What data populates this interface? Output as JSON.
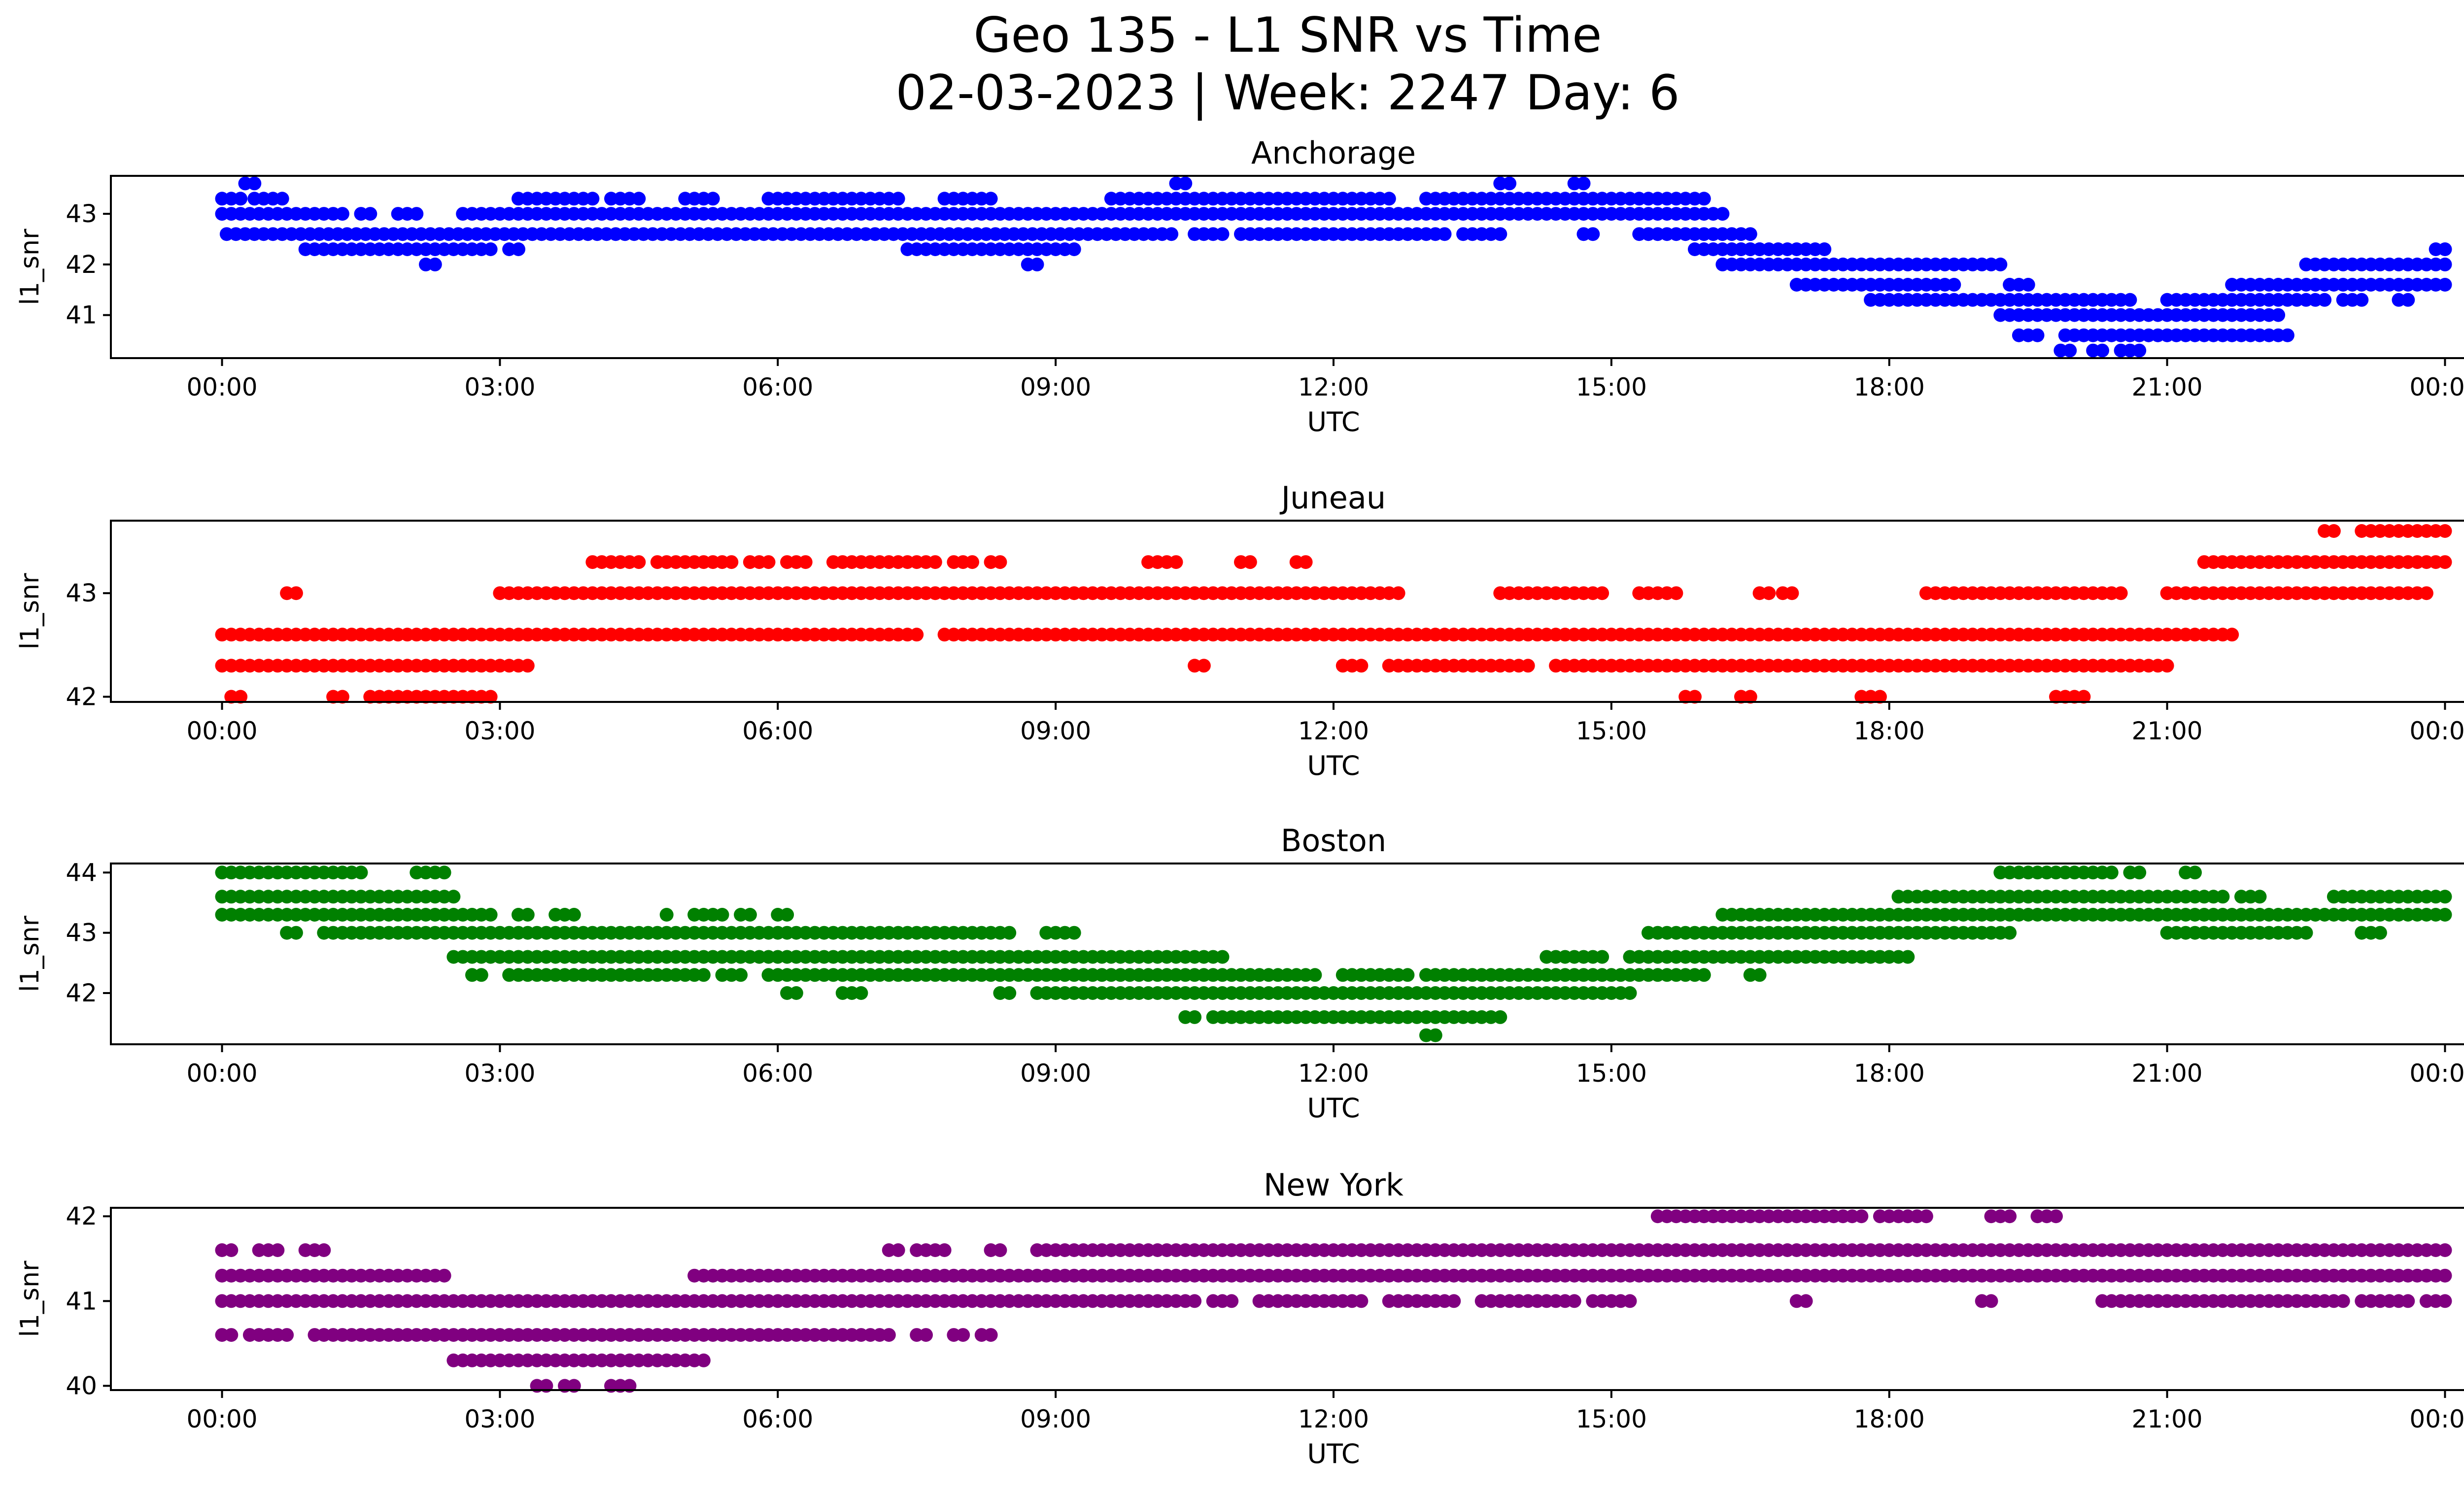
{
  "figure": {
    "title_line1": "Geo 135 - L1 SNR vs Time",
    "title_line2": "02-03-2023 | Week: 2247 Day: 6"
  },
  "chart_data": [
    {
      "type": "scatter",
      "title": "Anchorage",
      "xlabel": "UTC",
      "ylabel": "l1_snr",
      "color": "#0000ff",
      "x_ticks": [
        "00:00",
        "03:00",
        "06:00",
        "09:00",
        "12:00",
        "15:00",
        "18:00",
        "21:00",
        "00:00"
      ],
      "xlim_hours": [
        -1.2,
        25.2
      ],
      "y_ticks": [
        41,
        42,
        43
      ],
      "ylim": [
        40.15,
        43.75
      ],
      "bands": [
        {
          "y": 43.6,
          "segs": [
            [
              0.25,
              0.35
            ],
            [
              10.3,
              10.4
            ],
            [
              13.8,
              13.95
            ],
            [
              14.6,
              14.7
            ]
          ]
        },
        {
          "y": 43.3,
          "segs": [
            [
              0,
              0.25
            ],
            [
              0.35,
              0.45
            ],
            [
              0.55,
              0.7
            ],
            [
              3.2,
              4.0
            ],
            [
              4.2,
              4.5
            ],
            [
              5.0,
              5.3
            ],
            [
              5.9,
              6.3
            ],
            [
              6.4,
              7.3
            ],
            [
              7.8,
              8.3
            ],
            [
              9.6,
              12.6
            ],
            [
              13.0,
              16.0
            ]
          ]
        },
        {
          "y": 43.0,
          "segs": [
            [
              0,
              1.3
            ],
            [
              1.5,
              1.6
            ],
            [
              1.9,
              2.15
            ],
            [
              2.6,
              16.2
            ]
          ]
        },
        {
          "y": 42.6,
          "segs": [
            [
              0.05,
              10.3
            ],
            [
              10.5,
              10.8
            ],
            [
              11.0,
              13.2
            ],
            [
              13.4,
              13.8
            ],
            [
              14.7,
              14.85
            ],
            [
              15.3,
              16.5
            ]
          ]
        },
        {
          "y": 42.3,
          "segs": [
            [
              0.9,
              2.9
            ],
            [
              3.1,
              3.2
            ],
            [
              7.4,
              9.2
            ],
            [
              15.9,
              16.6
            ]
          ]
        },
        {
          "y": 42.0,
          "segs": [
            [
              2.2,
              2.3
            ],
            [
              8.7,
              8.8
            ],
            [
              16.2,
              19.2
            ]
          ]
        },
        {
          "y": 42.3,
          "segs": [
            [
              16.4,
              17.3
            ]
          ]
        },
        {
          "y": 41.6,
          "segs": [
            [
              17.0,
              18.7
            ],
            [
              19.3,
              19.5
            ],
            [
              21.7,
              23.5
            ]
          ]
        },
        {
          "y": 41.3,
          "segs": [
            [
              17.8,
              20.6
            ],
            [
              21.0,
              22.7
            ],
            [
              22.9,
              23.1
            ],
            [
              23.5,
              23.6
            ]
          ]
        },
        {
          "y": 41.6,
          "segs": [
            [
              23.6,
              24.0
            ]
          ]
        },
        {
          "y": 42.0,
          "segs": [
            [
              22.5,
              24.0
            ]
          ]
        },
        {
          "y": 42.3,
          "segs": [
            [
              23.9,
              24.0
            ]
          ]
        },
        {
          "y": 41.0,
          "segs": [
            [
              19.2,
              22.2
            ]
          ]
        },
        {
          "y": 40.6,
          "segs": [
            [
              19.4,
              19.6
            ],
            [
              19.9,
              22.3
            ]
          ]
        },
        {
          "y": 40.3,
          "segs": [
            [
              19.85,
              20.0
            ],
            [
              20.2,
              20.3
            ],
            [
              20.5,
              20.7
            ]
          ]
        }
      ]
    },
    {
      "type": "scatter",
      "title": "Juneau",
      "xlabel": "UTC",
      "ylabel": "l1_snr",
      "color": "#ff0000",
      "x_ticks": [
        "00:00",
        "03:00",
        "06:00",
        "09:00",
        "12:00",
        "15:00",
        "18:00",
        "21:00",
        "00:00"
      ],
      "xlim_hours": [
        -1.2,
        25.2
      ],
      "y_ticks": [
        42,
        43
      ],
      "ylim": [
        41.95,
        43.7
      ],
      "bands": [
        {
          "y": 43.6,
          "segs": [
            [
              22.7,
              22.8
            ],
            [
              23.1,
              24.0
            ]
          ]
        },
        {
          "y": 43.3,
          "segs": [
            [
              4.0,
              4.5
            ],
            [
              4.7,
              5.5
            ],
            [
              5.7,
              5.9
            ],
            [
              6.1,
              6.3
            ],
            [
              6.6,
              7.7
            ],
            [
              7.9,
              8.1
            ],
            [
              8.3,
              8.45
            ],
            [
              10.0,
              10.3
            ],
            [
              11.0,
              11.1
            ],
            [
              11.6,
              11.7
            ],
            [
              21.4,
              24.0
            ]
          ]
        },
        {
          "y": 43.0,
          "segs": [
            [
              0.7,
              0.8
            ],
            [
              3.0,
              12.75
            ],
            [
              13.8,
              14.9
            ],
            [
              15.3,
              15.7
            ],
            [
              16.6,
              16.7
            ],
            [
              16.85,
              16.95
            ],
            [
              18.4,
              20.5
            ],
            [
              21.0,
              23.8
            ]
          ]
        },
        {
          "y": 42.6,
          "segs": [
            [
              0.0,
              7.5
            ],
            [
              7.8,
              21.7
            ]
          ]
        },
        {
          "y": 42.3,
          "segs": [
            [
              0.0,
              3.3
            ],
            [
              10.5,
              10.6
            ],
            [
              12.1,
              12.3
            ],
            [
              12.6,
              14.1
            ],
            [
              14.4,
              21.0
            ]
          ]
        },
        {
          "y": 42.0,
          "segs": [
            [
              0.1,
              0.2
            ],
            [
              1.2,
              1.3
            ],
            [
              1.6,
              2.9
            ],
            [
              15.8,
              15.9
            ],
            [
              16.4,
              16.5
            ],
            [
              17.7,
              17.9
            ],
            [
              19.8,
              20.1
            ]
          ]
        }
      ]
    },
    {
      "type": "scatter",
      "title": "Boston",
      "xlabel": "UTC",
      "ylabel": "l1_snr",
      "color": "#008000",
      "x_ticks": [
        "00:00",
        "03:00",
        "06:00",
        "09:00",
        "12:00",
        "15:00",
        "18:00",
        "21:00",
        "00:00"
      ],
      "xlim_hours": [
        -1.2,
        25.2
      ],
      "y_ticks": [
        42,
        43,
        44
      ],
      "ylim": [
        41.15,
        44.15
      ],
      "bands": [
        {
          "y": 44.0,
          "segs": [
            [
              0.0,
              0.5
            ],
            [
              0.6,
              1.0
            ],
            [
              1.1,
              1.5
            ],
            [
              2.1,
              2.2
            ],
            [
              2.3,
              2.4
            ],
            [
              19.2,
              20.4
            ],
            [
              20.6,
              20.7
            ],
            [
              21.2,
              21.3
            ]
          ]
        },
        {
          "y": 43.6,
          "segs": [
            [
              0.0,
              2.5
            ],
            [
              18.1,
              21.6
            ],
            [
              21.8,
              22.0
            ],
            [
              22.8,
              24.0
            ]
          ]
        },
        {
          "y": 43.3,
          "segs": [
            [
              0.0,
              2.9
            ],
            [
              3.2,
              3.3
            ],
            [
              3.6,
              3.8
            ],
            [
              4.8,
              4.85
            ],
            [
              5.1,
              5.4
            ],
            [
              5.6,
              5.7
            ],
            [
              6.0,
              6.1
            ],
            [
              16.2,
              24.0
            ]
          ]
        },
        {
          "y": 43.0,
          "segs": [
            [
              0.7,
              0.8
            ],
            [
              1.1,
              8.5
            ],
            [
              8.9,
              9.2
            ],
            [
              15.4,
              19.3
            ],
            [
              21.0,
              22.5
            ],
            [
              23.1,
              23.3
            ]
          ]
        },
        {
          "y": 42.6,
          "segs": [
            [
              2.5,
              10.8
            ],
            [
              14.3,
              14.9
            ],
            [
              15.2,
              18.2
            ]
          ]
        },
        {
          "y": 42.3,
          "segs": [
            [
              2.7,
              2.8
            ],
            [
              3.1,
              5.2
            ],
            [
              5.4,
              5.6
            ],
            [
              5.9,
              11.8
            ],
            [
              12.1,
              12.8
            ],
            [
              13.0,
              16.0
            ],
            [
              16.5,
              16.6
            ]
          ]
        },
        {
          "y": 42.0,
          "segs": [
            [
              6.1,
              6.2
            ],
            [
              6.7,
              6.9
            ],
            [
              8.4,
              8.5
            ],
            [
              8.8,
              15.2
            ]
          ]
        },
        {
          "y": 41.6,
          "segs": [
            [
              10.4,
              10.5
            ],
            [
              10.7,
              10.8
            ],
            [
              10.9,
              13.8
            ]
          ]
        },
        {
          "y": 41.3,
          "segs": [
            [
              13.0,
              13.1
            ]
          ]
        }
      ]
    },
    {
      "type": "scatter",
      "title": "New York",
      "xlabel": "UTC",
      "ylabel": "l1_snr",
      "color": "#800080",
      "x_ticks": [
        "00:00",
        "03:00",
        "06:00",
        "09:00",
        "12:00",
        "15:00",
        "18:00",
        "21:00",
        "00:00"
      ],
      "xlim_hours": [
        -1.2,
        25.2
      ],
      "y_ticks": [
        40,
        41,
        42
      ],
      "ylim": [
        39.95,
        42.1
      ],
      "bands": [
        {
          "y": 42.0,
          "segs": [
            [
              15.5,
              17.7
            ],
            [
              17.9,
              18.4
            ],
            [
              19.1,
              19.3
            ],
            [
              19.6,
              19.8
            ]
          ]
        },
        {
          "y": 41.6,
          "segs": [
            [
              0.0,
              0.1
            ],
            [
              0.4,
              0.6
            ],
            [
              0.9,
              1.1
            ],
            [
              7.2,
              7.3
            ],
            [
              7.5,
              7.8
            ],
            [
              8.3,
              8.4
            ],
            [
              8.8,
              24.0
            ]
          ]
        },
        {
          "y": 41.3,
          "segs": [
            [
              0.0,
              2.4
            ],
            [
              5.1,
              5.2
            ],
            [
              5.3,
              24.0
            ]
          ]
        },
        {
          "y": 41.0,
          "segs": [
            [
              0.0,
              10.5
            ],
            [
              10.7,
              10.9
            ],
            [
              11.2,
              12.3
            ],
            [
              12.6,
              13.3
            ],
            [
              13.6,
              14.6
            ],
            [
              14.8,
              15.2
            ],
            [
              17.0,
              17.1
            ],
            [
              19.0,
              19.1
            ],
            [
              20.3,
              22.9
            ],
            [
              23.1,
              23.6
            ],
            [
              23.8,
              24.0
            ]
          ]
        },
        {
          "y": 40.6,
          "segs": [
            [
              0.0,
              0.1
            ],
            [
              0.3,
              0.7
            ],
            [
              1.0,
              7.2
            ],
            [
              7.5,
              7.6
            ],
            [
              7.9,
              8.0
            ],
            [
              8.2,
              8.3
            ]
          ]
        },
        {
          "y": 40.3,
          "segs": [
            [
              2.5,
              5.2
            ]
          ]
        },
        {
          "y": 40.0,
          "segs": [
            [
              3.4,
              3.5
            ],
            [
              3.7,
              3.8
            ],
            [
              4.2,
              4.4
            ]
          ]
        }
      ]
    }
  ]
}
